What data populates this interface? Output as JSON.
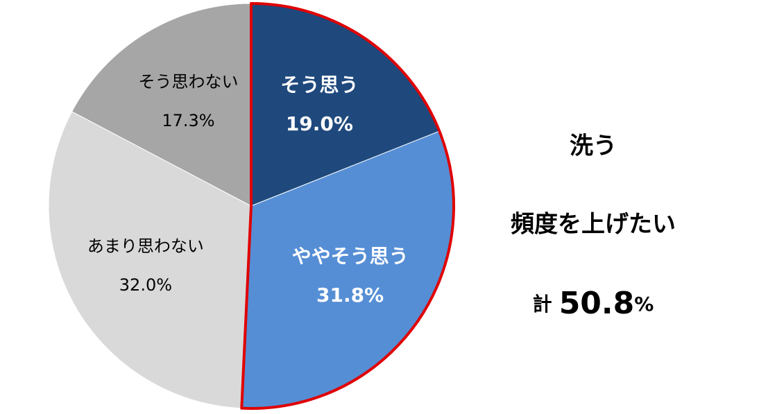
{
  "chart_data": {
    "type": "pie",
    "categories": [
      "そう思う",
      "ややそう思う",
      "あまり思わない",
      "そう思わない"
    ],
    "values": [
      19.0,
      31.8,
      32.0,
      17.3
    ],
    "value_labels": [
      "19.0%",
      "31.8%",
      "32.0%",
      "17.3%"
    ],
    "colors": [
      "#1f497d",
      "#558ed5",
      "#d9d9d9",
      "#a6a6a6"
    ],
    "highlight": [
      0,
      1
    ],
    "highlight_color": "#e00000",
    "annotation": {
      "lines": [
        "洗う",
        "頻度を上げたい"
      ],
      "total_prefix": "計",
      "total_number": "50.8",
      "total_unit": "%"
    }
  }
}
